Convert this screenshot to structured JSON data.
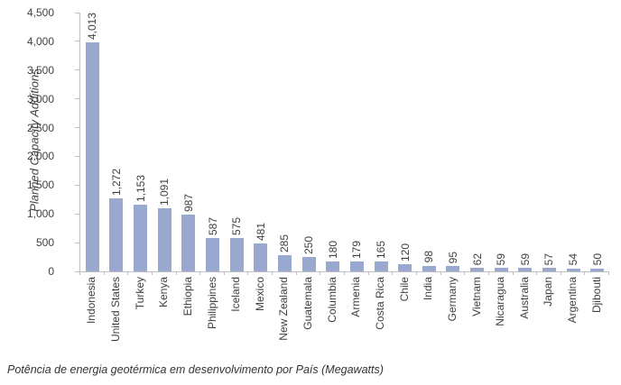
{
  "chart_data": {
    "type": "bar",
    "title": "",
    "xlabel": "",
    "ylabel": "Planned Capacity Additions",
    "caption": "Potência de energia geotérmica em desenvolvimento por País (Megawatts)",
    "categories": [
      "Indonesia",
      "United States",
      "Turkey",
      "Kenya",
      "Ethiopia",
      "Philippines",
      "Iceland",
      "Mexico",
      "New Zealand",
      "Guatemala",
      "Columbia",
      "Armenia",
      "Costa Rica",
      "Chile",
      "India",
      "Germany",
      "Vietnam",
      "Nicaragua",
      "Australia",
      "Japan",
      "Argentina",
      "Djibouti"
    ],
    "values": [
      4013,
      1272,
      1153,
      1091,
      987,
      587,
      575,
      481,
      285,
      250,
      180,
      179,
      165,
      120,
      98,
      95,
      62,
      59,
      59,
      57,
      54,
      50
    ],
    "value_labels": [
      "4,013",
      "1,272",
      "1,153",
      "1,091",
      "987",
      "587",
      "575",
      "481",
      "285",
      "250",
      "180",
      "179",
      "165",
      "120",
      "98",
      "95",
      "62",
      "59",
      "59",
      "57",
      "54",
      "50"
    ],
    "ylim": [
      0,
      4500
    ],
    "yticks": [
      0,
      500,
      1000,
      1500,
      2000,
      2500,
      3000,
      3500,
      4000,
      4500
    ],
    "ytick_labels": [
      "0",
      "500",
      "1,000",
      "1,500",
      "2,000",
      "2,500",
      "3,000",
      "3,500",
      "4,000",
      "4,500"
    ],
    "grid": false,
    "legend": "none",
    "bar_color": "#9aa7ce",
    "axis_color": "#bfbfbf",
    "text_color": "#404040"
  }
}
